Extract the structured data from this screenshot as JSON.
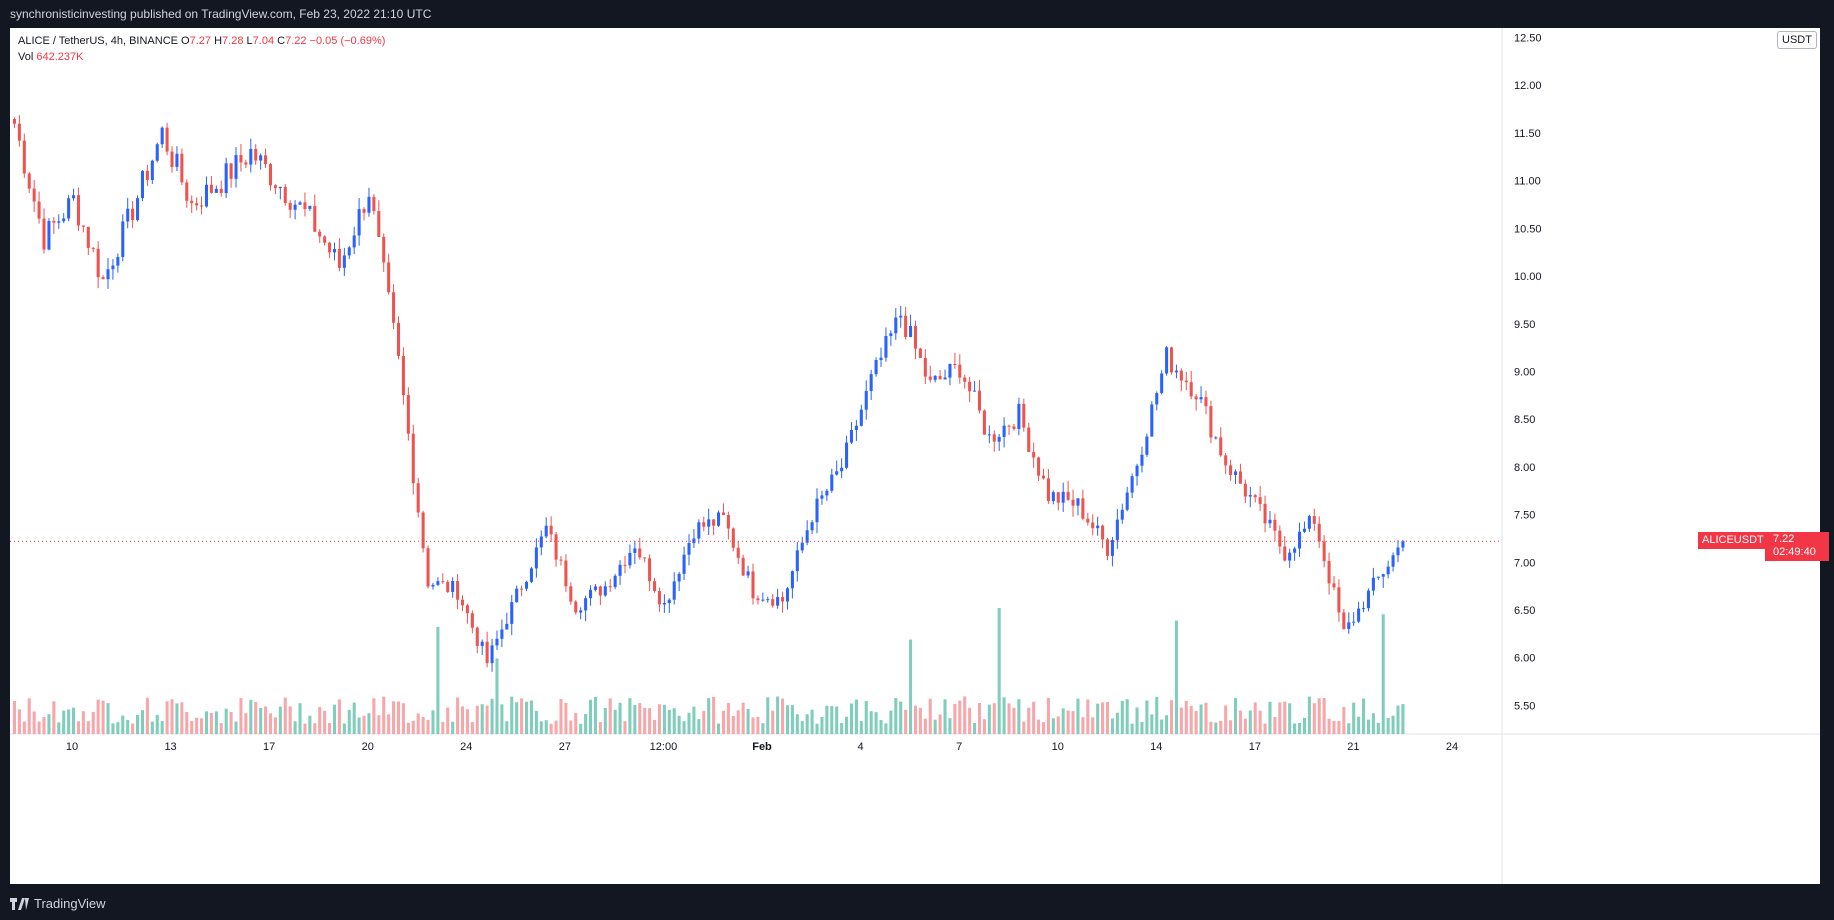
{
  "header": {
    "published_text": "synchronisticinvesting published on TradingView.com, Feb 23, 2022 21:10 UTC"
  },
  "legend": {
    "symbol": "ALICE / TetherUS, 4h, BINANCE",
    "o_label": "O",
    "o_value": "7.27",
    "h_label": "H",
    "h_value": "7.28",
    "l_label": "L",
    "l_value": "7.04",
    "c_label": "C",
    "c_value": "7.22",
    "change": "−0.05 (−0.69%)",
    "vol_label": "Vol",
    "vol_value": "642.237K"
  },
  "price_axis": {
    "unit": "USDT",
    "ticks": [
      "12.50",
      "12.00",
      "11.50",
      "11.00",
      "10.50",
      "10.00",
      "9.50",
      "9.00",
      "8.50",
      "8.00",
      "7.50",
      "7.00",
      "6.50",
      "6.00",
      "5.50"
    ]
  },
  "last_price": {
    "symbol_label": "ALICEUSDT",
    "value": "7.22",
    "countdown": "02:49:40"
  },
  "time_axis": {
    "labels": [
      "10",
      "13",
      "17",
      "20",
      "24",
      "27",
      "12:00",
      "Feb",
      "4",
      "7",
      "10",
      "14",
      "17",
      "21",
      "24"
    ]
  },
  "footer": {
    "brand": "TradingView"
  },
  "colors": {
    "up": "#2962ff",
    "down": "#ef5350",
    "vol_up": "#7fcdbb",
    "vol_down": "#f7a6a9",
    "price_line": "#f23645"
  },
  "chart_data": {
    "type": "candlestick",
    "title": "ALICE / TetherUS, 4h, BINANCE",
    "ylim": [
      5.2,
      12.6
    ],
    "y_ticks": [
      5.5,
      6,
      6.5,
      7,
      7.5,
      8,
      8.5,
      9,
      9.5,
      10,
      10.5,
      11,
      11.5,
      12,
      12.5
    ],
    "x_tick_labels": [
      "10",
      "13",
      "17",
      "20",
      "24",
      "27",
      "12:00",
      "Feb",
      "4",
      "7",
      "10",
      "14",
      "17",
      "21",
      "24"
    ],
    "last_close": 7.22,
    "anchors": [
      [
        "Jan 8",
        11.6
      ],
      [
        "Jan 9",
        10.4
      ],
      [
        "Jan 10",
        10.8
      ],
      [
        "Jan 11",
        9.95
      ],
      [
        "Jan 12",
        10.7
      ],
      [
        "Jan 13",
        11.5
      ],
      [
        "Jan 14",
        10.75
      ],
      [
        "Jan 15",
        11.0
      ],
      [
        "Jan 16",
        11.3
      ],
      [
        "Jan 17",
        10.95
      ],
      [
        "Jan 18",
        10.6
      ],
      [
        "Jan 19",
        10.1
      ],
      [
        "Jan 20",
        10.9
      ],
      [
        "Jan 21",
        9.1
      ],
      [
        "Jan 22",
        6.8
      ],
      [
        "Jan 23",
        6.7
      ],
      [
        "Jan 24",
        5.95
      ],
      [
        "Jan 25",
        6.65
      ],
      [
        "Jan 26",
        7.35
      ],
      [
        "Jan 27",
        6.55
      ],
      [
        "Jan 28",
        6.75
      ],
      [
        "Jan 29",
        7.2
      ],
      [
        "Jan 30",
        6.55
      ],
      [
        "Jan 31",
        7.35
      ],
      [
        "Feb 1",
        7.45
      ],
      [
        "Feb 2",
        6.7
      ],
      [
        "Feb 3",
        6.6
      ],
      [
        "Feb 4",
        7.5
      ],
      [
        "Feb 5",
        8.0
      ],
      [
        "Feb 6",
        8.9
      ],
      [
        "Feb 7",
        9.6
      ],
      [
        "Feb 8",
        8.85
      ],
      [
        "Feb 9",
        9.05
      ],
      [
        "Feb 10",
        8.3
      ],
      [
        "Feb 11",
        8.55
      ],
      [
        "Feb 12",
        7.7
      ],
      [
        "Feb 13",
        7.6
      ],
      [
        "Feb 14",
        7.15
      ],
      [
        "Feb 15",
        8.05
      ],
      [
        "Feb 16",
        9.15
      ],
      [
        "Feb 17",
        8.8
      ],
      [
        "Feb 18",
        8.05
      ],
      [
        "Feb 19",
        7.6
      ],
      [
        "Feb 20",
        7.1
      ],
      [
        "Feb 21",
        7.45
      ],
      [
        "Feb 22",
        6.25
      ],
      [
        "Feb 23",
        6.75
      ],
      [
        "Feb 24",
        7.22
      ]
    ],
    "volume_spikes": [
      [
        "Jan 22",
        0.85
      ],
      [
        "Jan 24",
        0.6
      ],
      [
        "Feb 7",
        0.75
      ],
      [
        "Feb 10",
        1.0
      ],
      [
        "Feb 16",
        0.9
      ],
      [
        "Feb 23",
        0.95
      ]
    ]
  }
}
